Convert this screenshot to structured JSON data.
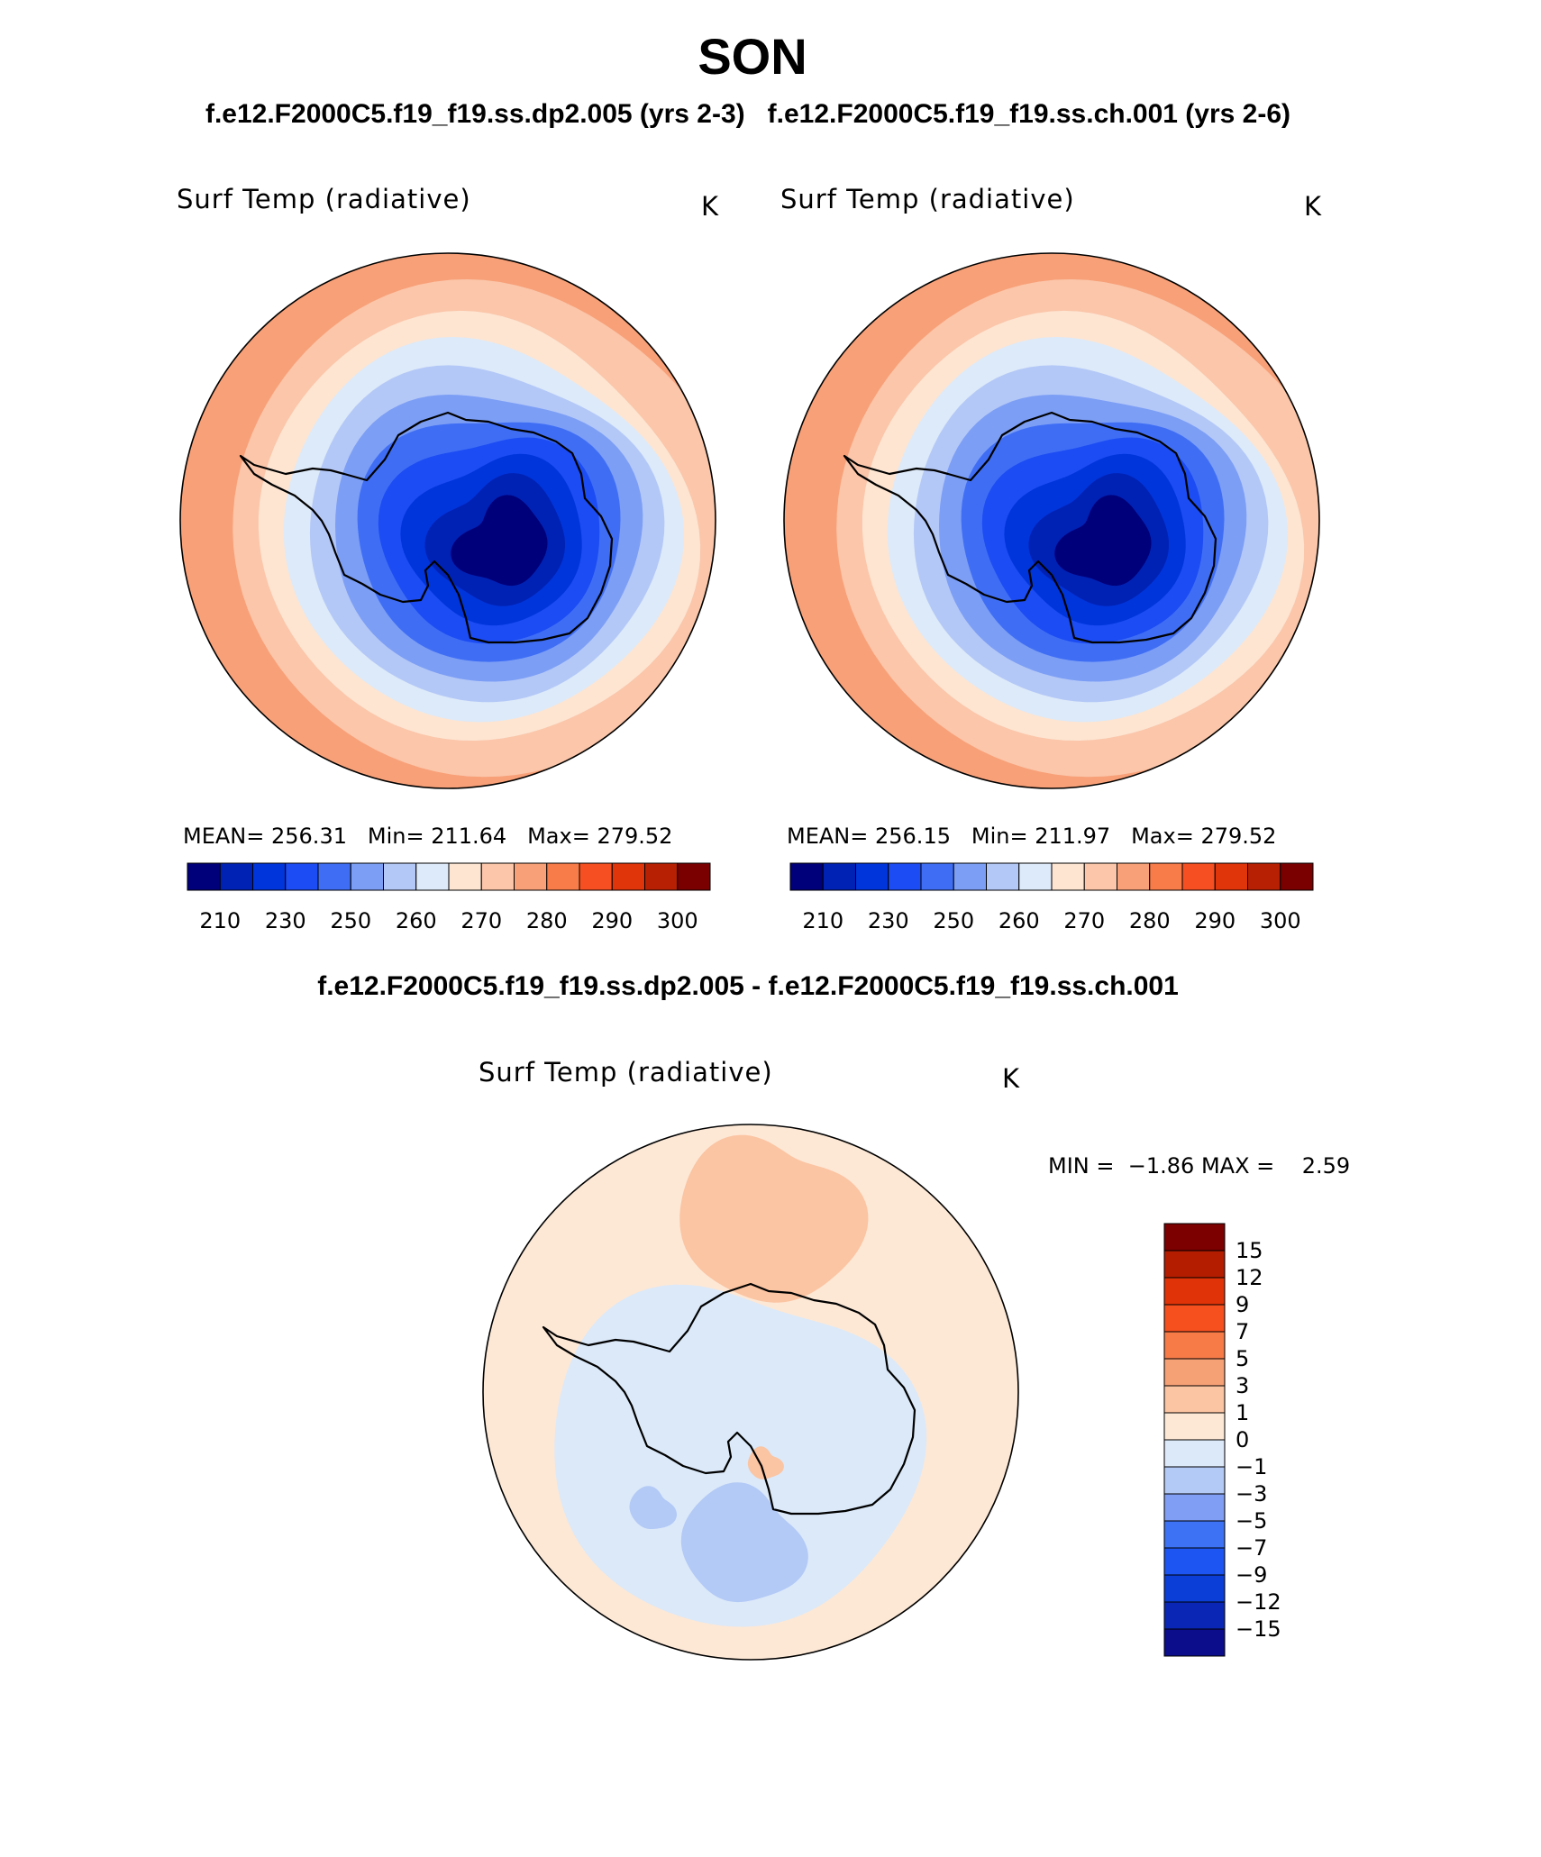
{
  "header": {
    "title": "SON",
    "case_title_left": "f.e12.F2000C5.f19_f19.ss.dp2.005 (yrs 2-3)",
    "case_title_right": "f.e12.F2000C5.f19_f19.ss.ch.001 (yrs 2-6)",
    "diff_title": "f.e12.F2000C5.f19_f19.ss.dp2.005 - f.e12.F2000C5.f19_f19.ss.ch.001"
  },
  "panels": [
    {
      "variable": "Surf Temp (radiative)",
      "units": "K",
      "mean_label": "MEAN=",
      "mean": "256.31",
      "min_label": "Min=",
      "min": "211.64",
      "max_label": "Max=",
      "max": "279.52"
    },
    {
      "variable": "Surf Temp (radiative)",
      "units": "K",
      "mean_label": "MEAN=",
      "mean": "256.15",
      "min_label": "Min=",
      "min": "211.97",
      "max_label": "Max=",
      "max": "279.52"
    }
  ],
  "diff_panel": {
    "variable": "Surf Temp (radiative)",
    "units": "K",
    "min_label": "MIN =",
    "min": "−1.86",
    "max_label": "MAX =",
    "max": "2.59"
  },
  "colors": {
    "abs_palette": [
      "#00007a",
      "#0022b4",
      "#0035dc",
      "#1c4cf3",
      "#3f6ef5",
      "#7c9ef5",
      "#b4c8f7",
      "#ddeaf9",
      "#fde5d2",
      "#fbc6aa",
      "#f8a078",
      "#f77c49",
      "#f65022",
      "#e0340a",
      "#b82003",
      "#7a0000"
    ],
    "diff_palette": [
      "#0b0d8a",
      "#0a26b4",
      "#0a3ed7",
      "#1c55f2",
      "#3d72f4",
      "#7f9ef4",
      "#b3c9f6",
      "#dbe9f9",
      "#fde8d6",
      "#fbc4a2",
      "#f6a076",
      "#f67b47",
      "#f6501f",
      "#e03308",
      "#b41d00",
      "#7d0000"
    ],
    "coastline": "#000000"
  },
  "chart_data": [
    {
      "type": "heatmap",
      "title": "Surf Temp (radiative)",
      "units": "K",
      "projection": "south polar stereographic",
      "colorbar_levels": [
        210,
        220,
        230,
        240,
        250,
        255,
        260,
        265,
        270,
        275,
        280,
        285,
        290,
        295,
        300
      ],
      "colorbar_tick_labels": [
        "210",
        "230",
        "250",
        "260",
        "270",
        "280",
        "290",
        "300"
      ],
      "legend_placement": "bottom",
      "stats": {
        "mean": 256.31,
        "min": 211.64,
        "max": 279.52
      }
    },
    {
      "type": "heatmap",
      "title": "Surf Temp (radiative)",
      "units": "K",
      "projection": "south polar stereographic",
      "colorbar_levels": [
        210,
        220,
        230,
        240,
        250,
        255,
        260,
        265,
        270,
        275,
        280,
        285,
        290,
        295,
        300
      ],
      "colorbar_tick_labels": [
        "210",
        "230",
        "250",
        "260",
        "270",
        "280",
        "290",
        "300"
      ],
      "legend_placement": "bottom",
      "stats": {
        "mean": 256.15,
        "min": 211.97,
        "max": 279.52
      }
    },
    {
      "type": "heatmap",
      "title": "Surf Temp (radiative)",
      "units": "K",
      "projection": "south polar stereographic",
      "colorbar_levels": [
        -15,
        -12,
        -9,
        -7,
        -5,
        -3,
        -1,
        0,
        1,
        3,
        5,
        7,
        9,
        12,
        15
      ],
      "colorbar_tick_labels": [
        "15",
        "12",
        "9",
        "7",
        "5",
        "3",
        "1",
        "0",
        "−1",
        "−3",
        "−5",
        "−7",
        "−9",
        "−12",
        "−15"
      ],
      "legend_placement": "right",
      "stats": {
        "min": -1.86,
        "max": 2.59
      }
    }
  ]
}
